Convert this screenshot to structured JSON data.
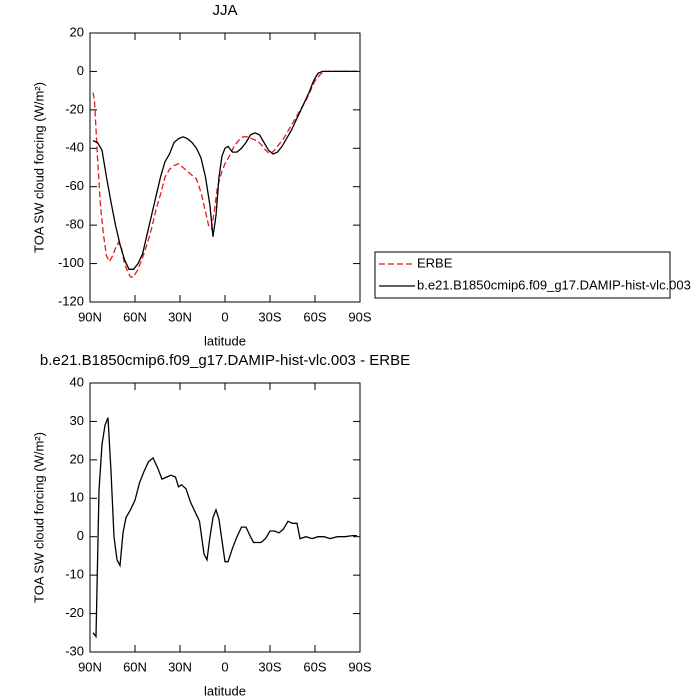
{
  "chart_data": [
    {
      "type": "line",
      "title": "JJA",
      "x_label": "latitude",
      "y_label": "TOA SW cloud forcing (W/m²)",
      "xlim": [
        90,
        -90
      ],
      "ylim": [
        -120,
        20
      ],
      "xticks": [
        {
          "value": 90,
          "label": "90N"
        },
        {
          "value": 60,
          "label": "60N"
        },
        {
          "value": 30,
          "label": "30N"
        },
        0,
        {
          "value": -30,
          "label": "30S"
        },
        {
          "value": -60,
          "label": "60S"
        },
        {
          "value": -90,
          "label": "90S"
        }
      ],
      "yticks": [
        -120,
        -100,
        -80,
        -60,
        -40,
        -20,
        0,
        20
      ],
      "legend": "right",
      "series": [
        {
          "name": "ERBE",
          "color": "#e41a1c",
          "line_style": "dashed",
          "x": [
            88,
            87,
            85,
            83,
            81,
            79,
            77,
            75,
            73,
            71,
            69,
            67,
            65,
            63,
            61,
            58,
            55,
            52,
            49,
            46,
            43,
            40,
            37,
            34,
            31,
            28,
            25,
            22,
            19,
            16,
            13,
            11,
            9,
            7,
            5,
            2,
            0,
            -3,
            -6,
            -9,
            -12,
            -15,
            -18,
            -21,
            -24,
            -27,
            -30,
            -33,
            -36,
            -39,
            -42,
            -45,
            -48,
            -51,
            -54,
            -57,
            -60,
            -63,
            -66,
            -70,
            -75,
            -80,
            -85,
            -88
          ],
          "values": [
            -11,
            -15,
            -45,
            -70,
            -85,
            -96,
            -99,
            -96,
            -92,
            -89,
            -92,
            -100,
            -104,
            -107,
            -107,
            -103,
            -97,
            -90,
            -82,
            -72,
            -64,
            -55,
            -51,
            -49,
            -48,
            -50,
            -52,
            -54,
            -56,
            -63,
            -73,
            -80,
            -82,
            -72,
            -60,
            -52,
            -48,
            -44,
            -39,
            -36,
            -34,
            -34,
            -35,
            -36,
            -38,
            -41,
            -43,
            -41,
            -38,
            -35,
            -31,
            -27,
            -23,
            -19,
            -15,
            -10,
            -5,
            -2,
            0,
            0,
            0,
            0,
            0,
            0
          ]
        },
        {
          "name": "b.e21.B1850cmip6.f09_g17.DAMIP-hist-vlc.003",
          "color": "#000000",
          "line_style": "solid",
          "x": [
            88,
            85,
            82,
            79,
            76,
            73,
            70,
            67,
            64,
            61,
            58,
            55,
            52,
            49,
            46,
            43,
            40,
            37,
            34,
            31,
            28,
            25,
            22,
            19,
            16,
            13,
            10,
            8,
            6,
            4,
            2,
            0,
            -2,
            -5,
            -8,
            -11,
            -14,
            -17,
            -20,
            -23,
            -26,
            -29,
            -32,
            -35,
            -38,
            -41,
            -44,
            -47,
            -50,
            -53,
            -56,
            -59,
            -62,
            -65,
            -70,
            -75,
            -80,
            -85,
            -88
          ],
          "values": [
            -36,
            -37,
            -41,
            -55,
            -68,
            -80,
            -90,
            -98,
            -103,
            -103,
            -100,
            -95,
            -85,
            -75,
            -65,
            -55,
            -47,
            -43,
            -37,
            -35,
            -34,
            -35,
            -37,
            -40,
            -45,
            -55,
            -70,
            -86,
            -75,
            -55,
            -44,
            -40,
            -39,
            -42,
            -42,
            -40,
            -37,
            -33,
            -32,
            -33,
            -37,
            -41,
            -43,
            -42,
            -39,
            -35,
            -31,
            -26,
            -21,
            -16,
            -11,
            -5,
            -1,
            0,
            0,
            0,
            0,
            0,
            0
          ]
        }
      ]
    },
    {
      "type": "line",
      "title": "b.e21.B1850cmip6.f09_g17.DAMIP-hist-vlc.003 - ERBE",
      "x_label": "latitude",
      "y_label": "TOA SW cloud forcing (W/m²)",
      "xlim": [
        90,
        -90
      ],
      "ylim": [
        -30,
        40
      ],
      "xticks": [
        {
          "value": 90,
          "label": "90N"
        },
        {
          "value": 60,
          "label": "60N"
        },
        {
          "value": 30,
          "label": "30N"
        },
        0,
        {
          "value": -30,
          "label": "30S"
        },
        {
          "value": -60,
          "label": "60S"
        },
        {
          "value": -90,
          "label": "90S"
        }
      ],
      "yticks": [
        -30,
        -20,
        -10,
        0,
        10,
        20,
        30,
        40
      ],
      "series": [
        {
          "color": "#000000",
          "line_style": "solid",
          "x": [
            88,
            86,
            84,
            82,
            80,
            78,
            76,
            74,
            72,
            70,
            68,
            66,
            63,
            60,
            57,
            54,
            51,
            48,
            45,
            42,
            39,
            36,
            33,
            31,
            29,
            26,
            23,
            20,
            17,
            14,
            12,
            10,
            8,
            6,
            4,
            2,
            0,
            -2,
            -5,
            -8,
            -11,
            -14,
            -17,
            -19,
            -22,
            -24,
            -27,
            -30,
            -33,
            -36,
            -39,
            -42,
            -45,
            -48,
            -50,
            -54,
            -58,
            -62,
            -66,
            -70,
            -75,
            -80,
            -85,
            -88
          ],
          "values": [
            -25,
            -26,
            12,
            24,
            29,
            31,
            17,
            0,
            -6,
            -7.5,
            1,
            5,
            7,
            9.5,
            14,
            17,
            19.5,
            20.5,
            18,
            15,
            15.5,
            16,
            15.5,
            13,
            13.5,
            12.5,
            9,
            6.5,
            4,
            -4.5,
            -6,
            0,
            5,
            7,
            4.5,
            -1,
            -6.5,
            -6.5,
            -3,
            0,
            2.5,
            2.5,
            0,
            -1.5,
            -1.5,
            -1.5,
            -0.5,
            1.5,
            1.5,
            1,
            2,
            4,
            3.5,
            3.5,
            -0.5,
            0,
            -0.5,
            0,
            0,
            -0.5,
            0,
            0,
            0.3,
            0.3
          ]
        }
      ]
    }
  ]
}
